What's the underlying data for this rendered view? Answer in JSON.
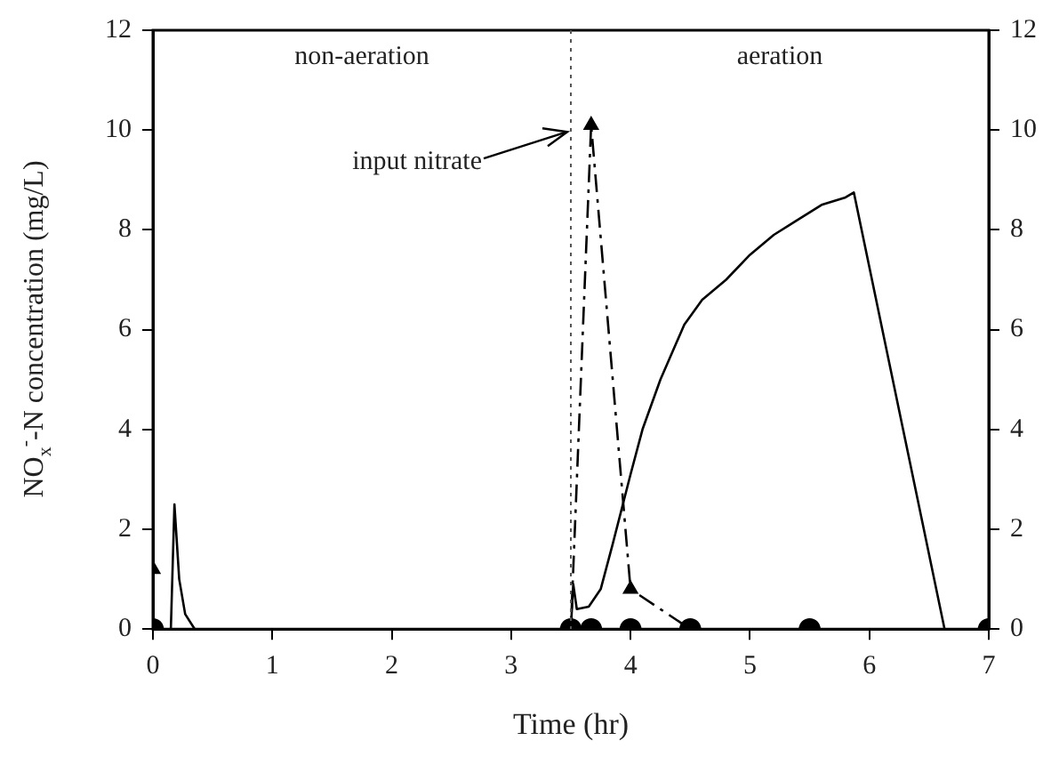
{
  "chart_data": {
    "type": "line",
    "xlabel": "Time (hr)",
    "ylabel": "NO$_{x}$$^{-}$-N concentration (mg/L)",
    "xlim": [
      0,
      7
    ],
    "xticks": [
      0,
      1,
      2,
      3,
      4,
      5,
      6,
      7
    ],
    "ylim": [
      0,
      12
    ],
    "yticks": [
      0,
      2,
      4,
      6,
      8,
      10,
      12
    ],
    "y2lim": [
      0,
      12
    ],
    "y2ticks": [
      0,
      2,
      4,
      6,
      8,
      10,
      12
    ],
    "grid": false,
    "legend": false,
    "series": [
      {
        "color": "#000000",
        "marker": "none",
        "line_style": "solid",
        "x": [
          0,
          0.15,
          0.18,
          0.22,
          0.27,
          0.35,
          3.5,
          3.52,
          3.55,
          3.65,
          3.75,
          3.85,
          4,
          4.1,
          4.25,
          4.45,
          4.6,
          4.8,
          5,
          5.2,
          5.4,
          5.6,
          5.8,
          5.87,
          6.63,
          7
        ],
        "values": [
          0,
          0,
          2.5,
          1,
          0.3,
          0,
          0,
          0.9,
          0.4,
          0.45,
          0.8,
          1.7,
          3.1,
          4,
          5,
          6.1,
          6.6,
          7,
          7.5,
          7.9,
          8.2,
          8.5,
          8.65,
          8.75,
          0,
          0
        ]
      },
      {
        "color": "#000000",
        "marker": "triangle",
        "line_style": "dashed",
        "x": [
          0,
          0,
          3.5,
          3.67,
          4,
          4.5
        ],
        "values": [
          1.2,
          0,
          0,
          10.1,
          0.8,
          0
        ]
      },
      {
        "type": "scatter",
        "color": "#000000",
        "marker": "circle",
        "x": [
          0,
          3.5,
          3.67,
          4,
          4.5,
          5.5,
          7
        ],
        "values": [
          0,
          0,
          0,
          0,
          0,
          0,
          0
        ]
      }
    ],
    "ref_lines": [
      {
        "axis": "x",
        "value": 3.5,
        "line_style": "dotted",
        "color": "#555555"
      }
    ],
    "annotations": [
      "non-aeration",
      "aeration",
      {
        "text": "input nitrate",
        "x": 3.5,
        "y": 10
      }
    ]
  }
}
